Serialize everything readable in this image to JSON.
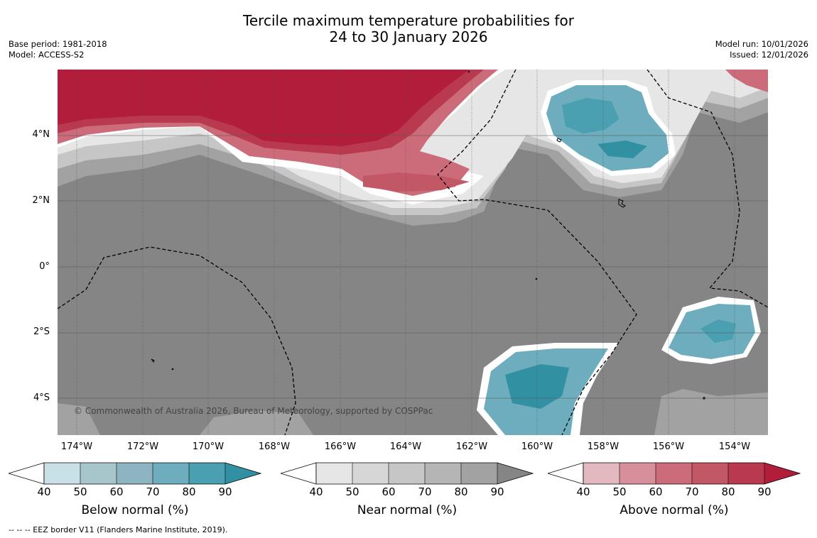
{
  "header": {
    "title_line1": "Tercile maximum temperature probabilities for",
    "title_line2": "24 to 30 January 2026",
    "base_period": "Base period: 1981-2018",
    "model": "Model: ACCESS-S2",
    "model_run": "Model run: 10/01/2026",
    "issued": "Issued: 12/01/2026"
  },
  "map": {
    "lat_labels": [
      "4°N",
      "2°N",
      "0°",
      "2°S",
      "4°S"
    ],
    "lon_labels": [
      "174°W",
      "172°W",
      "170°W",
      "168°W",
      "166°W",
      "164°W",
      "162°W",
      "160°W",
      "158°W",
      "156°W",
      "154°W"
    ],
    "credit": "© Commonwealth of Australia 2026, Bureau of Meteorology, supported by COSPPac",
    "colors": {
      "background_near": "#858585",
      "above": [
        "#e2b9c0",
        "#d88f9c",
        "#cc6b79",
        "#c25766",
        "#b93a4e",
        "#b11d3a"
      ],
      "below": [
        "#c9e0e6",
        "#a7c6cc",
        "#8db4c0",
        "#6dadbd",
        "#4a9fb0",
        "#3290a3"
      ],
      "near": [
        "#e6e6e6",
        "#d6d6d6",
        "#c6c6c6",
        "#b5b5b5",
        "#a2a2a2",
        "#858585"
      ]
    }
  },
  "colorbars": {
    "ticks": [
      "40",
      "50",
      "60",
      "70",
      "80",
      "90"
    ],
    "below_label": "Below normal (%)",
    "near_label": "Near normal (%)",
    "above_label": "Above normal (%)"
  },
  "footnote": "--  --  -- EEZ border V11 (Flanders Marine Institute, 2019)."
}
